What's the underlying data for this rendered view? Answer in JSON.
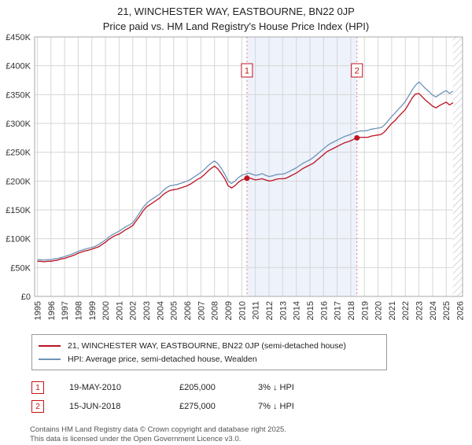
{
  "header": {
    "title": "21, WINCHESTER WAY, EASTBOURNE, BN22 0JP",
    "subtitle": "Price paid vs. HM Land Registry's House Price Index (HPI)"
  },
  "chart_data": {
    "type": "line",
    "title": "21, WINCHESTER WAY, EASTBOURNE, BN22 0JP — Price paid vs. HPI",
    "units": "GBP thousands",
    "x_start": 1995.0,
    "x_step": 0.25,
    "xlim": [
      1994.8,
      2026.2
    ],
    "ylim_k": [
      0,
      450
    ],
    "grid": true,
    "legend_position": "bottom",
    "yticks": [
      {
        "v": 0,
        "label": "£0"
      },
      {
        "v": 50,
        "label": "£50K"
      },
      {
        "v": 100,
        "label": "£100K"
      },
      {
        "v": 150,
        "label": "£150K"
      },
      {
        "v": 200,
        "label": "£200K"
      },
      {
        "v": 250,
        "label": "£250K"
      },
      {
        "v": 300,
        "label": "£300K"
      },
      {
        "v": 350,
        "label": "£350K"
      },
      {
        "v": 400,
        "label": "£400K"
      },
      {
        "v": 450,
        "label": "£450K"
      }
    ],
    "xticks": [
      1995,
      1996,
      1997,
      1998,
      1999,
      2000,
      2001,
      2002,
      2003,
      2004,
      2005,
      2006,
      2007,
      2008,
      2009,
      2010,
      2011,
      2012,
      2013,
      2014,
      2015,
      2016,
      2017,
      2018,
      2019,
      2020,
      2021,
      2022,
      2023,
      2024,
      2025,
      2026
    ],
    "series": [
      {
        "name": "property",
        "label": "21, WINCHESTER WAY, EASTBOURNE, BN22 0JP (semi-detached house)",
        "color": "#bb1122",
        "values_k": [
          61,
          61,
          60,
          61,
          61,
          62,
          63,
          65,
          66,
          68,
          70,
          72,
          75,
          77,
          79,
          80,
          82,
          84,
          86,
          90,
          94,
          99,
          103,
          106,
          108,
          112,
          116,
          119,
          123,
          131,
          139,
          148,
          155,
          159,
          163,
          167,
          171,
          177,
          181,
          184,
          185,
          186,
          188,
          190,
          192,
          195,
          199,
          203,
          206,
          211,
          217,
          222,
          226,
          221,
          213,
          204,
          192,
          188,
          192,
          198,
          202,
          204,
          206,
          204,
          202,
          203,
          204,
          202,
          200,
          201,
          203,
          204,
          204,
          205,
          208,
          211,
          214,
          218,
          222,
          225,
          228,
          231,
          236,
          241,
          246,
          251,
          254,
          257,
          260,
          263,
          266,
          268,
          270,
          273,
          275,
          276,
          276,
          276,
          278,
          279,
          280,
          281,
          286,
          293,
          300,
          305,
          312,
          318,
          324,
          334,
          344,
          351,
          352,
          346,
          340,
          335,
          330,
          327,
          331,
          334,
          337,
          332,
          336
        ]
      },
      {
        "name": "hpi",
        "label": "HPI: Average price, semi-detached house, Wealden",
        "color": "#6e94b8",
        "values_k": [
          64,
          63.5,
          63,
          63.5,
          64,
          65,
          66,
          67.5,
          69,
          71,
          73,
          75.5,
          78,
          80,
          82,
          83.5,
          85,
          87,
          90,
          94,
          98,
          103,
          107,
          110,
          113,
          117,
          121,
          124,
          128,
          136,
          145,
          154,
          161,
          166,
          170,
          174,
          178,
          184,
          189,
          192,
          193,
          194,
          196,
          198,
          200,
          203,
          207,
          211,
          215,
          220,
          226,
          231,
          235,
          230,
          222,
          212,
          200,
          196,
          200,
          206,
          210,
          212,
          214,
          212,
          210,
          211,
          213,
          210,
          208,
          209,
          211,
          212,
          212,
          214,
          217,
          220,
          223,
          227,
          231,
          234,
          237,
          241,
          246,
          251,
          256,
          261,
          265,
          268,
          271,
          274,
          277,
          279,
          281,
          284,
          286,
          287,
          287,
          288,
          290,
          291,
          292,
          293,
          298,
          305,
          312,
          318,
          325,
          331,
          338,
          348,
          358,
          366,
          372,
          366,
          360,
          355,
          349,
          346,
          350,
          354,
          357,
          352,
          356
        ]
      }
    ],
    "sales": [
      {
        "num": "1",
        "x": 2010.38,
        "value_k": 205
      },
      {
        "num": "2",
        "x": 2018.45,
        "value_k": 275
      }
    ],
    "shaded_region_x": [
      2010.38,
      2018.45
    ],
    "hatch_region_x": [
      2025.5,
      2026.2
    ],
    "shade_color": "#edf2fb",
    "sale_line_color": "#e0808e",
    "marker_color": "#c11122",
    "grid_color": "#d6d6d6",
    "border_color": "#aaaaaa"
  },
  "legend": {
    "items": [
      {
        "label": "21, WINCHESTER WAY, EASTBOURNE, BN22 0JP (semi-detached house)"
      },
      {
        "label": "HPI: Average price, semi-detached house, Wealden"
      }
    ]
  },
  "transactions": [
    {
      "num": "1",
      "date": "19-MAY-2010",
      "price": "£205,000",
      "hpi_note": "3% ↓ HPI"
    },
    {
      "num": "2",
      "date": "15-JUN-2018",
      "price": "£275,000",
      "hpi_note": "7% ↓ HPI"
    }
  ],
  "footer": {
    "line1": "Contains HM Land Registry data © Crown copyright and database right 2025.",
    "line2": "This data is licensed under the Open Government Licence v3.0."
  }
}
